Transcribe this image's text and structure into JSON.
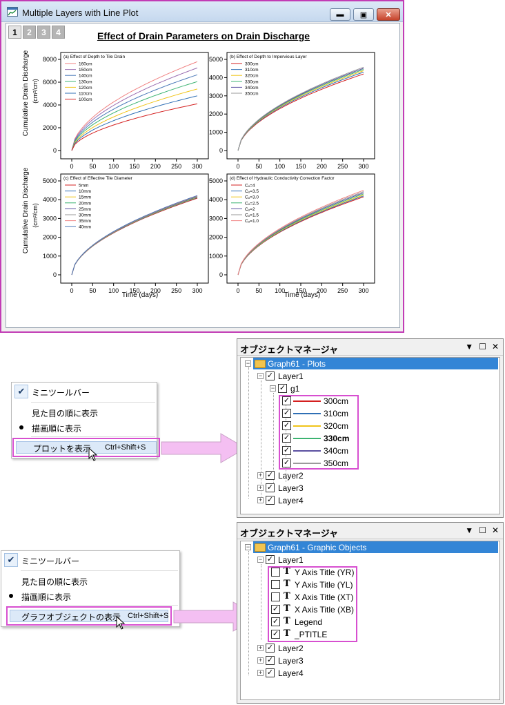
{
  "window": {
    "title": "Multiple Layers with Line Plot",
    "layer_tabs": [
      "1",
      "2",
      "3",
      "4"
    ],
    "graph_title": "Effect of Drain Parameters on Drain Discharge",
    "y_axis_title": "Cumulative Drain Discharge",
    "y_axis_unit": "(cm²/cm)",
    "x_axis_title": "Time (days)"
  },
  "chart_data": [
    {
      "type": "line",
      "panel": "a",
      "title": "(a) Effect of Depth to Tile Drain",
      "x": [
        0,
        300
      ],
      "xlim": [
        0,
        300
      ],
      "xticks": [
        0,
        50,
        100,
        150,
        200,
        250,
        300
      ],
      "ylim": [
        0,
        8000
      ],
      "yticks": [
        0,
        2000,
        4000,
        6000,
        8000
      ],
      "legend": "top-left",
      "series": [
        {
          "name": "160cm",
          "end_value": 7800,
          "color": "#f08080"
        },
        {
          "name": "150cm",
          "end_value": 7250,
          "color": "#9a6db0"
        },
        {
          "name": "140cm",
          "end_value": 6650,
          "color": "#4a78b8"
        },
        {
          "name": "130cm",
          "end_value": 6050,
          "color": "#3cb371"
        },
        {
          "name": "120cm",
          "end_value": 5400,
          "color": "#f0c419"
        },
        {
          "name": "110cm",
          "end_value": 4800,
          "color": "#2f6fb5"
        },
        {
          "name": "100cm",
          "end_value": 4100,
          "color": "#d42020"
        }
      ]
    },
    {
      "type": "line",
      "panel": "b",
      "title": "(b) Effect of Depth to Impervious Layer",
      "xlim": [
        0,
        300
      ],
      "xticks": [
        0,
        50,
        100,
        150,
        200,
        250,
        300
      ],
      "ylim": [
        0,
        5000
      ],
      "yticks": [
        0,
        1000,
        2000,
        3000,
        4000,
        5000
      ],
      "legend": "top-left",
      "series": [
        {
          "name": "300cm",
          "end_value": 4200,
          "color": "#d42020"
        },
        {
          "name": "310cm",
          "end_value": 4300,
          "color": "#2f6fb5"
        },
        {
          "name": "320cm",
          "end_value": 4380,
          "color": "#f0c419"
        },
        {
          "name": "330cm",
          "end_value": 4450,
          "color": "#3cb371"
        },
        {
          "name": "340cm",
          "end_value": 4510,
          "color": "#5a4fa0"
        },
        {
          "name": "350cm",
          "end_value": 4570,
          "color": "#9a9a9a"
        }
      ]
    },
    {
      "type": "line",
      "panel": "c",
      "title": "(c) Effect of Effective Tile Diameter",
      "xlim": [
        0,
        300
      ],
      "xticks": [
        0,
        50,
        100,
        150,
        200,
        250,
        300
      ],
      "ylim": [
        0,
        5000
      ],
      "yticks": [
        0,
        1000,
        2000,
        3000,
        4000,
        5000
      ],
      "legend": "top-left",
      "series": [
        {
          "name": "5mm",
          "end_value": 4080,
          "color": "#d42020"
        },
        {
          "name": "10mm",
          "end_value": 4110,
          "color": "#2f6fb5"
        },
        {
          "name": "15mm",
          "end_value": 4130,
          "color": "#f0c419"
        },
        {
          "name": "20mm",
          "end_value": 4150,
          "color": "#3cb371"
        },
        {
          "name": "25mm",
          "end_value": 4170,
          "color": "#5a4fa0"
        },
        {
          "name": "30mm",
          "end_value": 4190,
          "color": "#9a9a9a"
        },
        {
          "name": "35mm",
          "end_value": 4205,
          "color": "#f08080"
        },
        {
          "name": "40mm",
          "end_value": 4220,
          "color": "#4a78b8"
        }
      ]
    },
    {
      "type": "line",
      "panel": "d",
      "title": "(d) Effect of Hydraulic Conductivity Correction Factor",
      "xlim": [
        0,
        300
      ],
      "xticks": [
        0,
        50,
        100,
        150,
        200,
        250,
        300
      ],
      "ylim": [
        0,
        5000
      ],
      "yticks": [
        0,
        1000,
        2000,
        3000,
        4000,
        5000
      ],
      "legend": "top-left",
      "series": [
        {
          "name": "Cₒ=4",
          "end_value": 4150,
          "color": "#d42020"
        },
        {
          "name": "Cₒ=3.5",
          "end_value": 4200,
          "color": "#2f6fb5"
        },
        {
          "name": "Cₒ=3.0",
          "end_value": 4250,
          "color": "#f0c419"
        },
        {
          "name": "Cₒ=2.5",
          "end_value": 4310,
          "color": "#3cb371"
        },
        {
          "name": "Cₒ=2",
          "end_value": 4370,
          "color": "#5a4fa0"
        },
        {
          "name": "Cₒ=1.5",
          "end_value": 4430,
          "color": "#9a9a9a"
        },
        {
          "name": "Cₒ=1.0",
          "end_value": 4500,
          "color": "#f08080"
        }
      ]
    }
  ],
  "menu1": {
    "items": [
      {
        "label": "ミニツールバー",
        "mark": "check"
      },
      {
        "label": "見た目の順に表示",
        "mark": "none"
      },
      {
        "label": "描画順に表示",
        "mark": "dot"
      },
      {
        "label": "プロットを表示",
        "shortcut": "Ctrl+Shift+S",
        "mark": "none"
      }
    ]
  },
  "menu2": {
    "items": [
      {
        "label": "ミニツールバー",
        "mark": "check"
      },
      {
        "label": "見た目の順に表示",
        "mark": "none"
      },
      {
        "label": "描画順に表示",
        "mark": "dot"
      },
      {
        "label": "グラフオブジェクトの表示",
        "shortcut": "Ctrl+Shift+S",
        "mark": "none"
      }
    ]
  },
  "om1": {
    "title": "オブジェクトマネージャ",
    "root": "Graph61 - Plots",
    "layer1": "Layer1",
    "group": "g1",
    "plots": [
      {
        "label": "300cm",
        "color": "#d42020",
        "bold": false
      },
      {
        "label": "310cm",
        "color": "#2f6fb5",
        "bold": false
      },
      {
        "label": "320cm",
        "color": "#f0c419",
        "bold": false
      },
      {
        "label": "330cm",
        "color": "#3cb371",
        "bold": true
      },
      {
        "label": "340cm",
        "color": "#5a4fa0",
        "bold": false
      },
      {
        "label": "350cm",
        "color": "#9a9a9a",
        "bold": false
      }
    ],
    "other_layers": [
      "Layer2",
      "Layer3",
      "Layer4"
    ]
  },
  "om2": {
    "title": "オブジェクトマネージャ",
    "root": "Graph61 - Graphic Objects",
    "layer1": "Layer1",
    "objects": [
      {
        "label": "Y Axis Title (YR)",
        "checked": false
      },
      {
        "label": "Y Axis Title (YL)",
        "checked": false
      },
      {
        "label": "X Axis Title (XT)",
        "checked": false
      },
      {
        "label": "X Axis Title (XB)",
        "checked": true
      },
      {
        "label": "Legend",
        "checked": true
      },
      {
        "label": "_PTITLE",
        "checked": true
      }
    ],
    "other_layers": [
      "Layer2",
      "Layer3",
      "Layer4"
    ]
  },
  "colors": {
    "highlight": "#d74fd0",
    "selection": "#3385d6",
    "arrow": "#f2b8f0"
  }
}
